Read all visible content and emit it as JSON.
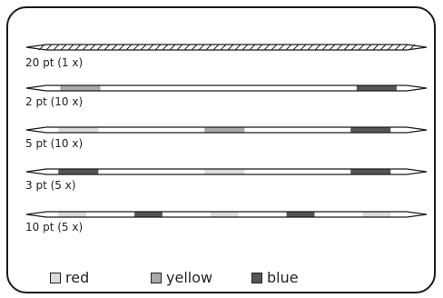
{
  "colors": {
    "red": "#dcdcdc",
    "yellow": "#a9a9a9",
    "blue": "#555555",
    "stroke": "#1a1a1a"
  },
  "rows": [
    {
      "label": "20 pt (1 x)",
      "striped": true,
      "bands": []
    },
    {
      "label": "2 pt (10 x)",
      "striped": false,
      "bands": [
        {
          "color": "yellow",
          "start": 0.085,
          "end": 0.185
        },
        {
          "color": "blue",
          "start": 0.825,
          "end": 0.925
        }
      ]
    },
    {
      "label": "5 pt (10 x)",
      "striped": false,
      "bands": [
        {
          "color": "red",
          "start": 0.08,
          "end": 0.18
        },
        {
          "color": "yellow",
          "start": 0.445,
          "end": 0.545
        },
        {
          "color": "blue",
          "start": 0.81,
          "end": 0.91
        }
      ]
    },
    {
      "label": "3 pt (5 x)",
      "striped": false,
      "bands": [
        {
          "color": "blue",
          "start": 0.08,
          "end": 0.18
        },
        {
          "color": "red",
          "start": 0.445,
          "end": 0.545
        },
        {
          "color": "blue",
          "start": 0.81,
          "end": 0.91
        }
      ]
    },
    {
      "label": "10 pt (5 x)",
      "striped": false,
      "bands": [
        {
          "color": "red",
          "start": 0.08,
          "end": 0.15
        },
        {
          "color": "blue",
          "start": 0.27,
          "end": 0.34
        },
        {
          "color": "red",
          "start": 0.46,
          "end": 0.53
        },
        {
          "color": "blue",
          "start": 0.65,
          "end": 0.72
        },
        {
          "color": "red",
          "start": 0.84,
          "end": 0.91
        }
      ]
    }
  ],
  "legend": [
    {
      "key": "red",
      "label": "red"
    },
    {
      "key": "yellow",
      "label": "yellow"
    },
    {
      "key": "blue",
      "label": "blue"
    }
  ]
}
